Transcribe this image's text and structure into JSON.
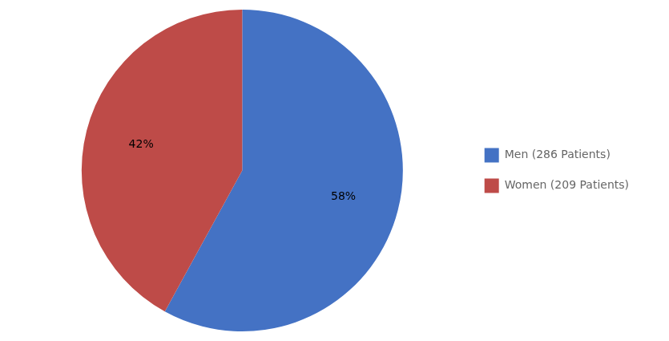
{
  "chart_data": {
    "type": "pie",
    "categories": [
      "Men (286 Patients)",
      "Women (209 Patients)"
    ],
    "values": [
      58,
      42
    ],
    "value_labels": [
      "58%",
      "42%"
    ],
    "colors": [
      "#4472C4",
      "#BE4B48"
    ],
    "data_labels": true,
    "legend": "right"
  }
}
